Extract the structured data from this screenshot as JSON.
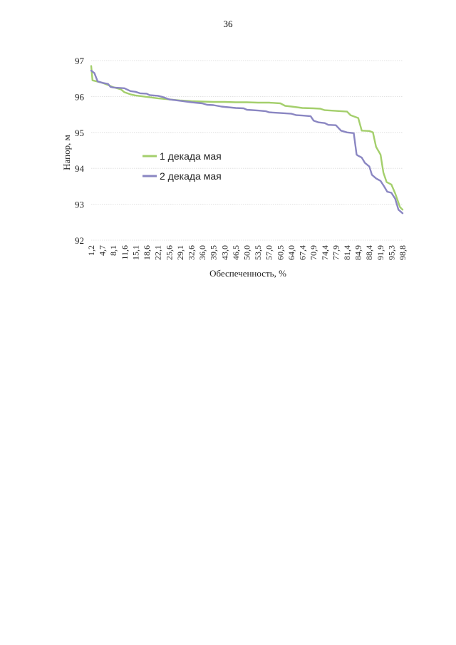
{
  "page": {
    "number": "36"
  },
  "colors": {
    "series1": "#a4cf6c",
    "series2": "#8a86c2",
    "grid": "#d9d9d9"
  },
  "chart_data": {
    "type": "line",
    "title": "",
    "xlabel": "Обеспеченность, %",
    "ylabel": "Напор, м",
    "ylim": [
      92,
      97
    ],
    "xlim": [
      1.2,
      98.8
    ],
    "yticks": [
      "92",
      "93",
      "94",
      "95",
      "96",
      "97"
    ],
    "xticks": [
      "1,2",
      "4,7",
      "8,1",
      "11,6",
      "15,1",
      "18,6",
      "22,1",
      "25,6",
      "29,1",
      "32,6",
      "36,0",
      "39,5",
      "43,0",
      "46,5",
      "50,0",
      "53,5",
      "57,0",
      "60,5",
      "64,0",
      "67,4",
      "70,9",
      "74,4",
      "77,9",
      "81,4",
      "84,9",
      "88,4",
      "91,9",
      "95,3",
      "98,8"
    ],
    "grid": "horizontal",
    "legend_position": "center-left",
    "series": [
      {
        "name": "1 декада мая",
        "points": [
          [
            1.2,
            96.85
          ],
          [
            1.6,
            96.45
          ],
          [
            4.7,
            96.38
          ],
          [
            6.5,
            96.32
          ],
          [
            8.1,
            96.26
          ],
          [
            10.5,
            96.2
          ],
          [
            11.6,
            96.12
          ],
          [
            13.5,
            96.06
          ],
          [
            15.1,
            96.03
          ],
          [
            18.6,
            95.99
          ],
          [
            22.1,
            95.95
          ],
          [
            25.6,
            95.92
          ],
          [
            29.1,
            95.89
          ],
          [
            32.6,
            95.87
          ],
          [
            36.0,
            95.86
          ],
          [
            39.5,
            95.85
          ],
          [
            43.0,
            95.85
          ],
          [
            46.5,
            95.84
          ],
          [
            50.0,
            95.84
          ],
          [
            53.5,
            95.83
          ],
          [
            57.0,
            95.83
          ],
          [
            60.5,
            95.81
          ],
          [
            62.0,
            95.74
          ],
          [
            64.0,
            95.72
          ],
          [
            67.4,
            95.68
          ],
          [
            70.9,
            95.67
          ],
          [
            73.0,
            95.66
          ],
          [
            74.4,
            95.62
          ],
          [
            77.9,
            95.6
          ],
          [
            81.4,
            95.58
          ],
          [
            82.5,
            95.48
          ],
          [
            84.9,
            95.4
          ],
          [
            86.0,
            95.05
          ],
          [
            88.4,
            95.04
          ],
          [
            89.5,
            95.0
          ],
          [
            90.5,
            94.6
          ],
          [
            91.9,
            94.38
          ],
          [
            92.8,
            93.88
          ],
          [
            93.8,
            93.62
          ],
          [
            95.3,
            93.55
          ],
          [
            96.5,
            93.3
          ],
          [
            98.0,
            92.92
          ],
          [
            98.8,
            92.85
          ]
        ]
      },
      {
        "name": "2 декада мая",
        "points": [
          [
            1.2,
            96.72
          ],
          [
            2.2,
            96.65
          ],
          [
            3.2,
            96.42
          ],
          [
            4.7,
            96.38
          ],
          [
            6.5,
            96.35
          ],
          [
            7.2,
            96.27
          ],
          [
            8.1,
            96.25
          ],
          [
            11.6,
            96.23
          ],
          [
            13.5,
            96.15
          ],
          [
            15.1,
            96.13
          ],
          [
            16.5,
            96.09
          ],
          [
            18.6,
            96.08
          ],
          [
            19.5,
            96.04
          ],
          [
            22.1,
            96.02
          ],
          [
            23.5,
            95.99
          ],
          [
            25.6,
            95.92
          ],
          [
            29.1,
            95.88
          ],
          [
            32.6,
            95.84
          ],
          [
            36.0,
            95.81
          ],
          [
            37.5,
            95.77
          ],
          [
            39.5,
            95.76
          ],
          [
            42.0,
            95.72
          ],
          [
            43.0,
            95.71
          ],
          [
            46.5,
            95.68
          ],
          [
            49.0,
            95.67
          ],
          [
            50.0,
            95.63
          ],
          [
            53.5,
            95.61
          ],
          [
            56.0,
            95.59
          ],
          [
            57.0,
            95.56
          ],
          [
            60.5,
            95.54
          ],
          [
            64.0,
            95.52
          ],
          [
            65.5,
            95.48
          ],
          [
            67.4,
            95.47
          ],
          [
            70.0,
            95.45
          ],
          [
            70.9,
            95.33
          ],
          [
            72.5,
            95.28
          ],
          [
            74.4,
            95.26
          ],
          [
            75.5,
            95.21
          ],
          [
            77.9,
            95.2
          ],
          [
            79.5,
            95.05
          ],
          [
            81.4,
            95.0
          ],
          [
            83.5,
            94.98
          ],
          [
            84.4,
            94.38
          ],
          [
            84.9,
            94.35
          ],
          [
            86.0,
            94.3
          ],
          [
            87.0,
            94.15
          ],
          [
            88.4,
            94.05
          ],
          [
            89.2,
            93.82
          ],
          [
            90.5,
            93.72
          ],
          [
            91.9,
            93.65
          ],
          [
            93.0,
            93.5
          ],
          [
            94.0,
            93.35
          ],
          [
            95.3,
            93.32
          ],
          [
            96.5,
            93.15
          ],
          [
            97.5,
            92.85
          ],
          [
            98.8,
            92.75
          ]
        ]
      }
    ]
  }
}
